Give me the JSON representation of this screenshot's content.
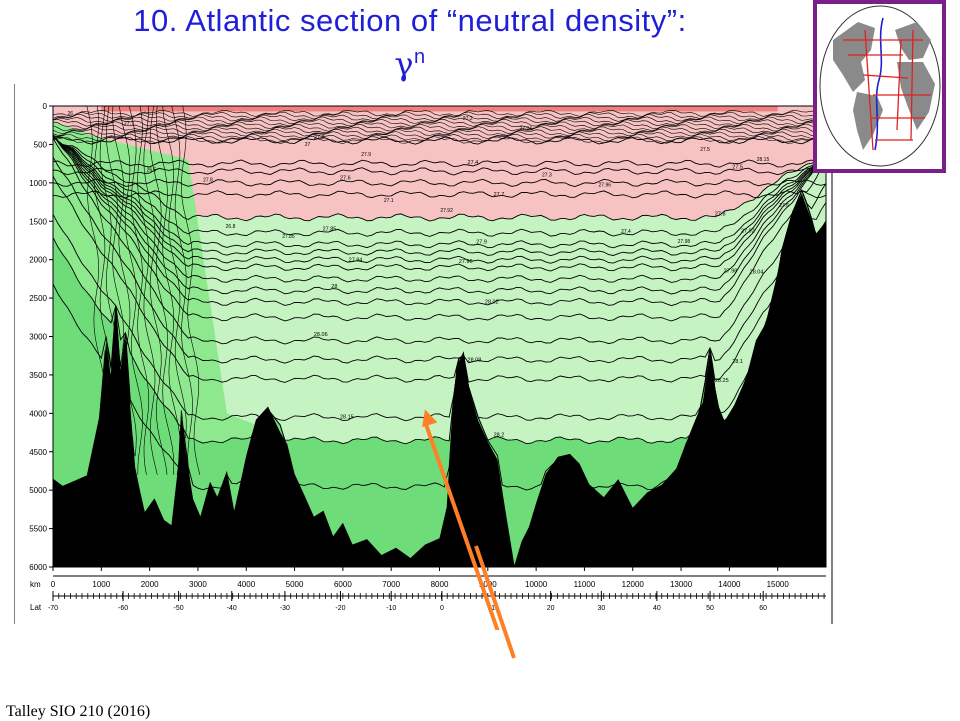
{
  "title": {
    "line1": "10. Atlantic section of “neutral density”:",
    "line2_symbol": "γ",
    "line2_superscript": "n"
  },
  "footer": {
    "credit": "Talley SIO 210 (2016)"
  },
  "colors": {
    "title": "#1f1fd8",
    "light_density": "#f6c2c2",
    "intermediate_density": "#c6f3c2",
    "deep_density": "#8ee88e",
    "bottom_density": "#6fdc7a",
    "top_band": "#ef8080",
    "bathymetry": "#000000",
    "inset_frame": "#7a1e8a",
    "arrow": "#ff7f27"
  },
  "map_inset": {
    "description_icon": "atlantic-map-with-station-tracks-icon"
  },
  "chart_data": {
    "type": "section",
    "x_axis": {
      "label": "km",
      "range": [
        0,
        16000
      ],
      "ticks": [
        0,
        1000,
        2000,
        3000,
        4000,
        5000,
        6000,
        7000,
        8000,
        9000,
        10000,
        11000,
        12000,
        13000,
        14000,
        15000
      ]
    },
    "y_axis": {
      "range": [
        0,
        6000
      ],
      "reversed": true,
      "ticks": [
        0,
        500,
        1000,
        1500,
        2000,
        2500,
        3000,
        3500,
        4000,
        4500,
        5000,
        5500,
        6000
      ]
    },
    "lat_axis": {
      "label": "Lat",
      "ticks": [
        -70,
        -60,
        -50,
        -40,
        -30,
        -20,
        -10,
        0,
        10,
        20,
        30,
        40,
        50,
        60
      ],
      "km_positions": [
        0,
        1450,
        2600,
        3700,
        4800,
        5950,
        7000,
        8050,
        9150,
        10300,
        11350,
        12500,
        13600,
        14700
      ]
    },
    "density_bands": [
      {
        "from": 0,
        "to": 27.0,
        "color": "#f6c2c2"
      },
      {
        "from": 27.0,
        "to": 28.0,
        "color": "#c6f3c2"
      },
      {
        "from": 28.0,
        "to": 28.2,
        "color": "#8ee88e"
      },
      {
        "from": 28.2,
        "to": 28.4,
        "color": "#6fdc7a"
      }
    ],
    "isopycnals": [
      {
        "value": "27.2",
        "depth": 450
      },
      {
        "value": "27.4",
        "depth": 750
      },
      {
        "value": "27.5",
        "depth": 850
      },
      {
        "value": "27.6",
        "depth": 1000
      },
      {
        "value": "27.7",
        "depth": 1150
      },
      {
        "value": "27.8",
        "depth": 1450
      },
      {
        "value": "27.85",
        "depth": 1650
      },
      {
        "value": "27.9",
        "depth": 1800
      },
      {
        "value": "27.92",
        "depth": 1900
      },
      {
        "value": "27.94",
        "depth": 2000
      },
      {
        "value": "27.96",
        "depth": 2100
      },
      {
        "value": "27.98",
        "depth": 2250
      },
      {
        "value": "28",
        "depth": 2400
      },
      {
        "value": "28.02",
        "depth": 2550
      },
      {
        "value": "28.04",
        "depth": 2750
      },
      {
        "value": "28.06",
        "depth": 3050
      },
      {
        "value": "28.08",
        "depth": 3300
      },
      {
        "value": "28.1",
        "depth": 3550
      },
      {
        "value": "28.15",
        "depth": 4050
      },
      {
        "value": "28.2",
        "depth": 4350
      },
      {
        "value": "28.25",
        "depth": 4950
      }
    ],
    "shallow_labels": [
      "26",
      "26.5",
      "26.8",
      "27",
      "27.1",
      "27.2",
      "27.3",
      "27.4",
      "27.5",
      "27.6",
      "27.7",
      "27.8",
      "27.85",
      "27.9",
      "27.92",
      "27.94",
      "27.96",
      "27.98",
      "28.15"
    ],
    "bathymetry": [
      [
        0,
        4850
      ],
      [
        200,
        4950
      ],
      [
        400,
        4900
      ],
      [
        700,
        4750
      ],
      [
        950,
        4150
      ],
      [
        1100,
        3000
      ],
      [
        1200,
        3600
      ],
      [
        1300,
        2600
      ],
      [
        1400,
        3500
      ],
      [
        1500,
        2950
      ],
      [
        1600,
        3950
      ],
      [
        1700,
        4700
      ],
      [
        1800,
        5050
      ],
      [
        1900,
        5200
      ],
      [
        2100,
        5100
      ],
      [
        2300,
        5300
      ],
      [
        2450,
        5450
      ],
      [
        2600,
        4700
      ],
      [
        2650,
        3900
      ],
      [
        2750,
        4500
      ],
      [
        2900,
        5100
      ],
      [
        3050,
        5300
      ],
      [
        3250,
        4900
      ],
      [
        3400,
        5150
      ],
      [
        3600,
        4800
      ],
      [
        3750,
        5300
      ],
      [
        4000,
        4600
      ],
      [
        4200,
        4150
      ],
      [
        4450,
        3950
      ],
      [
        4700,
        4150
      ],
      [
        4850,
        4450
      ],
      [
        5000,
        4850
      ],
      [
        5200,
        5100
      ],
      [
        5400,
        5400
      ],
      [
        5600,
        5300
      ],
      [
        5800,
        5650
      ],
      [
        6000,
        5450
      ],
      [
        6200,
        5750
      ],
      [
        6500,
        5650
      ],
      [
        6800,
        5850
      ],
      [
        7100,
        5700
      ],
      [
        7400,
        5900
      ],
      [
        7700,
        5750
      ],
      [
        8000,
        5600
      ],
      [
        8150,
        5200
      ],
      [
        8250,
        4200
      ],
      [
        8350,
        3300
      ],
      [
        8500,
        3250
      ],
      [
        8600,
        3650
      ],
      [
        8800,
        4050
      ],
      [
        9000,
        4350
      ],
      [
        9200,
        4550
      ],
      [
        9350,
        5200
      ],
      [
        9550,
        5900
      ],
      [
        9700,
        5750
      ],
      [
        9850,
        5500
      ],
      [
        10000,
        5100
      ],
      [
        10200,
        4750
      ],
      [
        10450,
        4600
      ],
      [
        10700,
        4550
      ],
      [
        10900,
        4750
      ],
      [
        11100,
        4950
      ],
      [
        11400,
        5050
      ],
      [
        11700,
        4950
      ],
      [
        12000,
        5150
      ],
      [
        12300,
        5050
      ],
      [
        12600,
        4900
      ],
      [
        12900,
        4800
      ],
      [
        13100,
        4400
      ],
      [
        13300,
        4150
      ],
      [
        13450,
        3800
      ],
      [
        13600,
        3150
      ],
      [
        13750,
        3950
      ],
      [
        13900,
        4100
      ],
      [
        14100,
        3950
      ],
      [
        14350,
        3550
      ],
      [
        14550,
        3150
      ],
      [
        14750,
        2850
      ],
      [
        14950,
        2400
      ],
      [
        15100,
        1850
      ],
      [
        15300,
        1400
      ],
      [
        15500,
        1100
      ],
      [
        15650,
        1350
      ],
      [
        15800,
        1700
      ],
      [
        16000,
        1500
      ]
    ],
    "annotation_arrow": {
      "from_km": 9300,
      "from_depth": 7200,
      "to_km": 7700,
      "to_depth": 3950
    }
  }
}
